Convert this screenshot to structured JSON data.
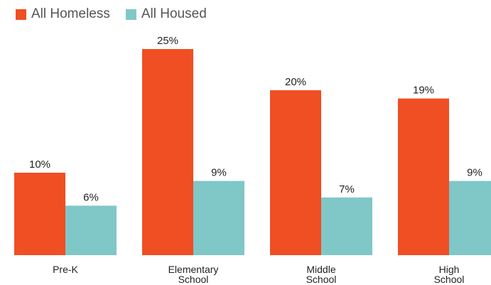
{
  "chart_data": {
    "type": "bar",
    "categories": [
      [
        "Pre-K"
      ],
      [
        "Elementary",
        "School"
      ],
      [
        "Middle",
        "School"
      ],
      [
        "High",
        "School"
      ]
    ],
    "series": [
      {
        "name": "All Homeless",
        "color": "#F04E23",
        "values": [
          10,
          25,
          20,
          19
        ]
      },
      {
        "name": "All Housed",
        "color": "#7FC8C7",
        "values": [
          6,
          9,
          7,
          9
        ]
      }
    ],
    "value_suffix": "%",
    "ylim": [
      0,
      27
    ],
    "legend_position": "top-left",
    "grid": false
  }
}
